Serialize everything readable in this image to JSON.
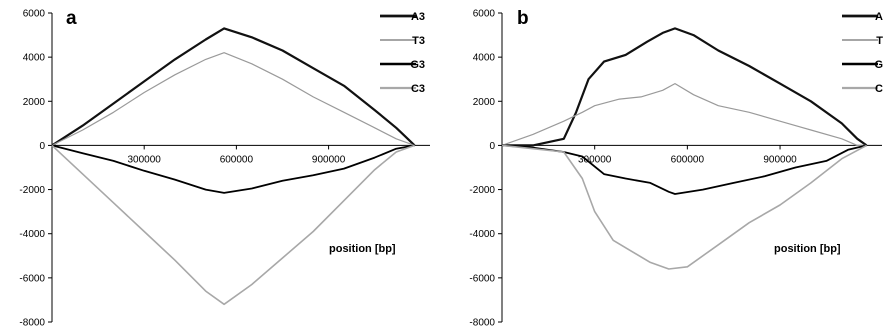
{
  "chart_data": [
    {
      "panel": "a",
      "type": "line",
      "xlabel": "position [bp]",
      "ylabel": "",
      "xlim": [
        0,
        1230000
      ],
      "ylim": [
        -8000,
        6000
      ],
      "x_ticks": [
        300000,
        600000,
        900000
      ],
      "x_tick_labels": [
        "300000",
        "600000",
        "900000"
      ],
      "y_ticks": [
        -8000,
        -6000,
        -4000,
        -2000,
        0,
        2000,
        4000,
        6000
      ],
      "y_tick_labels": [
        "-8000",
        "-6000",
        "-4000",
        "-2000",
        "0",
        "2000",
        "4000",
        "6000"
      ],
      "legend": "top-right",
      "series": [
        {
          "name": "A3",
          "color": "#111111",
          "width": 2.2,
          "x": [
            0,
            100000,
            200000,
            300000,
            400000,
            500000,
            560000,
            650000,
            750000,
            850000,
            950000,
            1050000,
            1120000,
            1150000,
            1180000
          ],
          "y": [
            0,
            900,
            1900,
            2900,
            3900,
            4800,
            5300,
            4900,
            4300,
            3500,
            2700,
            1600,
            800,
            400,
            0
          ]
        },
        {
          "name": "T3",
          "color": "#9a9a9a",
          "width": 1.2,
          "x": [
            0,
            100000,
            200000,
            300000,
            400000,
            500000,
            560000,
            650000,
            750000,
            850000,
            950000,
            1050000,
            1120000,
            1180000
          ],
          "y": [
            0,
            700,
            1500,
            2400,
            3200,
            3900,
            4200,
            3700,
            3000,
            2200,
            1500,
            800,
            300,
            0
          ]
        },
        {
          "name": "G3",
          "color": "#000000",
          "width": 1.8,
          "x": [
            0,
            100000,
            200000,
            300000,
            400000,
            500000,
            560000,
            650000,
            750000,
            850000,
            950000,
            1050000,
            1120000,
            1180000
          ],
          "y": [
            0,
            -350,
            -700,
            -1150,
            -1550,
            -2000,
            -2150,
            -1950,
            -1600,
            -1350,
            -1050,
            -550,
            -150,
            0
          ]
        },
        {
          "name": "C3",
          "color": "#a8a8a8",
          "width": 1.6,
          "x": [
            0,
            100000,
            200000,
            300000,
            400000,
            500000,
            560000,
            650000,
            750000,
            850000,
            950000,
            1050000,
            1120000,
            1180000
          ],
          "y": [
            0,
            -1300,
            -2600,
            -3900,
            -5200,
            -6600,
            -7200,
            -6300,
            -5100,
            -3900,
            -2500,
            -1100,
            -300,
            0
          ]
        }
      ]
    },
    {
      "panel": "b",
      "type": "line",
      "xlabel": "position [bp]",
      "ylabel": "",
      "xlim": [
        0,
        1230000
      ],
      "ylim": [
        -8000,
        6000
      ],
      "x_ticks": [
        300000,
        600000,
        900000
      ],
      "x_tick_labels": [
        "300000",
        "600000",
        "900000"
      ],
      "y_ticks": [
        -8000,
        -6000,
        -4000,
        -2000,
        0,
        2000,
        4000,
        6000
      ],
      "y_tick_labels": [
        "-8000",
        "-6000",
        "-4000",
        "-2000",
        "0",
        "2000",
        "4000",
        "6000"
      ],
      "legend": "top-right",
      "series": [
        {
          "name": "A",
          "color": "#111111",
          "width": 2.2,
          "x": [
            0,
            100000,
            200000,
            240000,
            280000,
            330000,
            400000,
            470000,
            520000,
            560000,
            620000,
            700000,
            800000,
            900000,
            1000000,
            1100000,
            1150000,
            1180000
          ],
          "y": [
            0,
            0,
            300,
            1500,
            3000,
            3800,
            4100,
            4700,
            5100,
            5300,
            5000,
            4300,
            3600,
            2800,
            2000,
            1000,
            300,
            0
          ]
        },
        {
          "name": "T",
          "color": "#9a9a9a",
          "width": 1.2,
          "x": [
            0,
            100000,
            200000,
            260000,
            300000,
            380000,
            450000,
            520000,
            560000,
            620000,
            700000,
            800000,
            900000,
            1000000,
            1100000,
            1150000,
            1180000
          ],
          "y": [
            0,
            500,
            1100,
            1500,
            1800,
            2100,
            2200,
            2500,
            2800,
            2300,
            1800,
            1500,
            1100,
            700,
            300,
            0,
            0
          ]
        },
        {
          "name": "G",
          "color": "#000000",
          "width": 1.8,
          "x": [
            0,
            100000,
            200000,
            260000,
            330000,
            400000,
            480000,
            540000,
            560000,
            650000,
            750000,
            850000,
            950000,
            1050000,
            1120000,
            1180000
          ],
          "y": [
            0,
            -100,
            -300,
            -500,
            -1300,
            -1500,
            -1700,
            -2100,
            -2200,
            -2000,
            -1700,
            -1400,
            -1000,
            -700,
            -200,
            0
          ]
        },
        {
          "name": "C",
          "color": "#a8a8a8",
          "width": 1.6,
          "x": [
            0,
            100000,
            200000,
            260000,
            300000,
            360000,
            420000,
            480000,
            540000,
            600000,
            700000,
            800000,
            900000,
            1000000,
            1100000,
            1180000
          ],
          "y": [
            0,
            -150,
            -300,
            -1500,
            -3000,
            -4300,
            -4800,
            -5300,
            -5600,
            -5500,
            -4500,
            -3500,
            -2700,
            -1700,
            -600,
            0
          ]
        }
      ]
    }
  ]
}
